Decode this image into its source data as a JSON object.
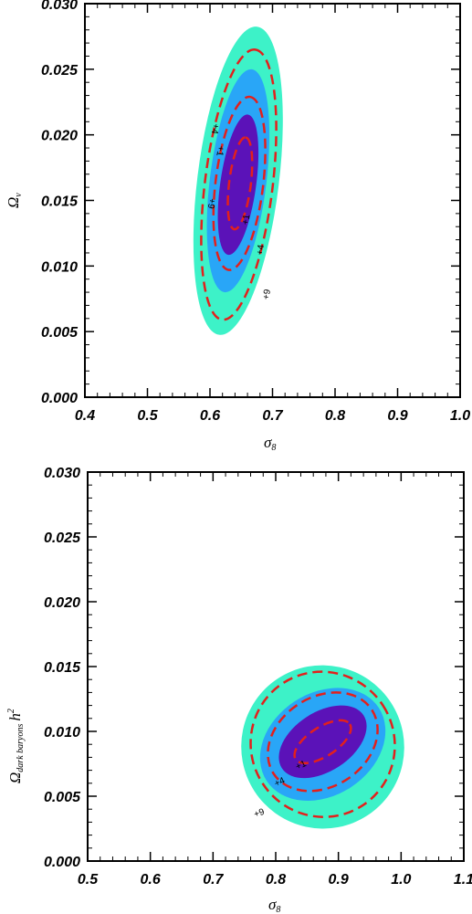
{
  "colors": {
    "outer_fill": "#3df2c8",
    "middle_fill": "#29a6f7",
    "inner_fill": "#5b12b8",
    "contour_line": "#e3201c",
    "axis": "#000000"
  },
  "chart_data": [
    {
      "type": "contour",
      "title": "",
      "xlabel": "σ",
      "xlabel_sub": "8",
      "ylabel": "Ω",
      "ylabel_sub": "ν",
      "xlim": [
        0.4,
        1.0
      ],
      "ylim": [
        0.0,
        0.03
      ],
      "x_ticks": [
        "0.4",
        "0.5",
        "0.6",
        "0.7",
        "0.8",
        "0.9",
        "1.0"
      ],
      "y_ticks": [
        "0.000",
        "0.005",
        "0.010",
        "0.015",
        "0.020",
        "0.025",
        "0.030"
      ],
      "filled_regions": [
        {
          "level": "outer",
          "center": [
            0.645,
            0.0165
          ],
          "x_extent": [
            0.577,
            0.72
          ],
          "y_extent": [
            0.0045,
            0.028
          ],
          "tilt_deg": -83
        },
        {
          "level": "middle",
          "center": [
            0.645,
            0.0165
          ],
          "x_extent": [
            0.595,
            0.695
          ],
          "y_extent": [
            0.0075,
            0.0245
          ],
          "tilt_deg": -83
        },
        {
          "level": "inner",
          "center": [
            0.645,
            0.0162
          ],
          "x_extent": [
            0.61,
            0.675
          ],
          "y_extent": [
            0.0105,
            0.0212
          ],
          "tilt_deg": -82
        }
      ],
      "dashed_contours": [
        {
          "label": "+1",
          "center": [
            0.648,
            0.0163
          ],
          "x_extent": [
            0.628,
            0.667
          ],
          "y_extent": [
            0.0128,
            0.0198
          ]
        },
        {
          "label": "+4",
          "center": [
            0.647,
            0.0163
          ],
          "x_extent": [
            0.605,
            0.688
          ],
          "y_extent": [
            0.0093,
            0.0225
          ]
        },
        {
          "label": "+9",
          "center": [
            0.646,
            0.0162
          ],
          "x_extent": [
            0.59,
            0.71
          ],
          "y_extent": [
            0.0058,
            0.0264
          ]
        }
      ],
      "contour_labels": [
        "+1",
        "+4",
        "+9",
        "+1",
        "+4",
        "+9"
      ]
    },
    {
      "type": "contour",
      "title": "",
      "xlabel": "σ",
      "xlabel_sub": "8",
      "ylabel": "Ω",
      "ylabel_sub": "dark baryons",
      "ylabel_suffix": "h",
      "ylabel_sup": "2",
      "xlim": [
        0.5,
        1.1
      ],
      "ylim": [
        0.0,
        0.03
      ],
      "x_ticks": [
        "0.5",
        "0.6",
        "0.7",
        "0.8",
        "0.9",
        "1.0",
        "1.1"
      ],
      "y_ticks": [
        "0.000",
        "0.005",
        "0.010",
        "0.015",
        "0.020",
        "0.025",
        "0.030"
      ],
      "filled_regions": [
        {
          "level": "outer",
          "center": [
            0.875,
            0.0088
          ],
          "x_extent": [
            0.745,
            1.005
          ],
          "y_extent": [
            0.0023,
            0.0149
          ],
          "tilt_deg": -33
        },
        {
          "level": "middle",
          "center": [
            0.875,
            0.009
          ],
          "x_extent": [
            0.775,
            0.975
          ],
          "y_extent": [
            0.0045,
            0.0132
          ],
          "tilt_deg": -33
        },
        {
          "level": "inner",
          "center": [
            0.875,
            0.0092
          ],
          "x_extent": [
            0.8,
            0.94
          ],
          "y_extent": [
            0.0062,
            0.0118
          ],
          "tilt_deg": -33
        }
      ],
      "dashed_contours": [
        {
          "label": "+1",
          "center": [
            0.875,
            0.0092
          ],
          "x_extent": [
            0.83,
            0.92
          ],
          "y_extent": [
            0.0075,
            0.0108
          ]
        },
        {
          "label": "+4",
          "center": [
            0.875,
            0.0092
          ],
          "x_extent": [
            0.785,
            0.96
          ],
          "y_extent": [
            0.0052,
            0.0128
          ]
        },
        {
          "label": "+9",
          "center": [
            0.875,
            0.009
          ],
          "x_extent": [
            0.76,
            0.99
          ],
          "y_extent": [
            0.0033,
            0.0145
          ]
        }
      ],
      "contour_labels": [
        "+1",
        "+4",
        "+9"
      ]
    }
  ]
}
